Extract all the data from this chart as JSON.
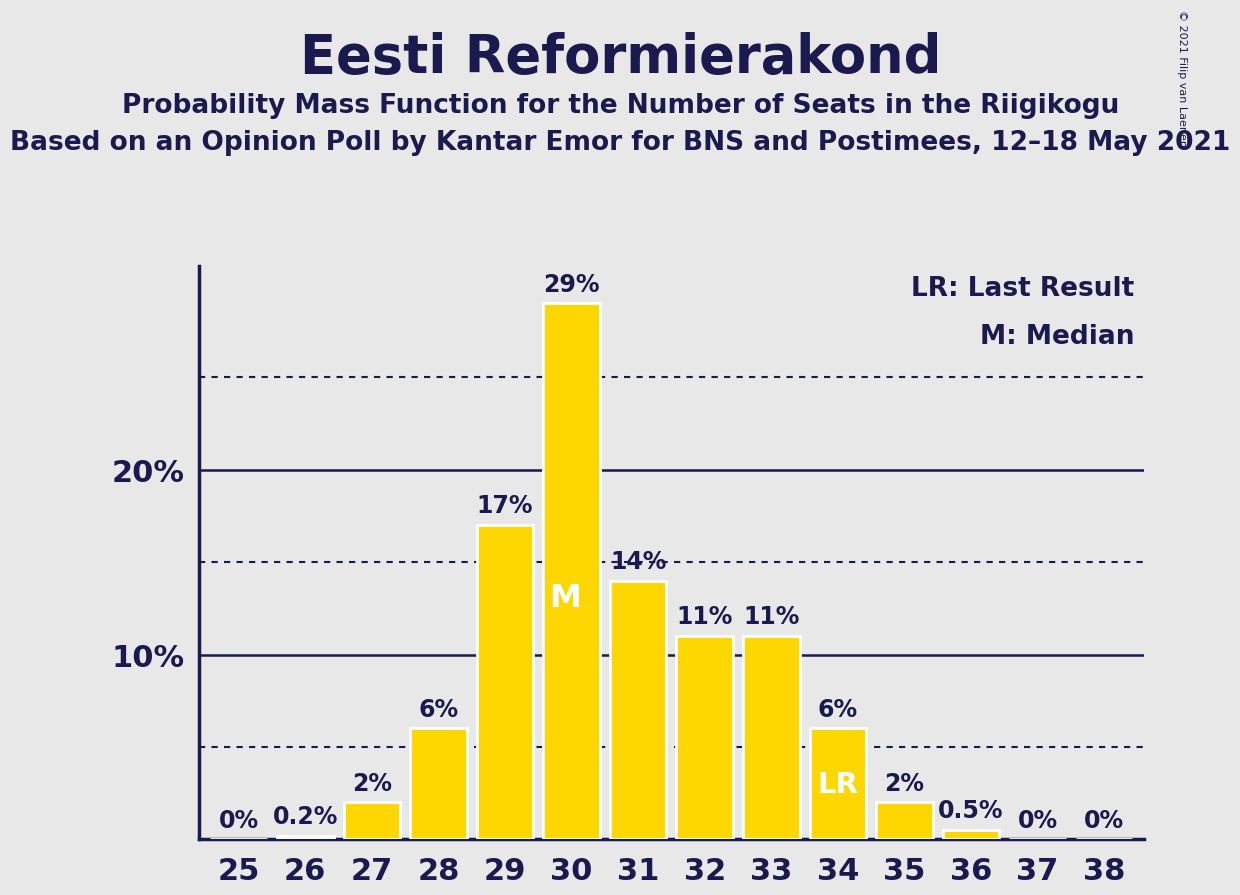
{
  "title": "Eesti Reformierakond",
  "subtitle1": "Probability Mass Function for the Number of Seats in the Riigikogu",
  "subtitle2": "Based on an Opinion Poll by Kantar Emor for BNS and Postimees, 12–18 May 2021",
  "copyright": "© 2021 Filip van Laenen",
  "seats": [
    25,
    26,
    27,
    28,
    29,
    30,
    31,
    32,
    33,
    34,
    35,
    36,
    37,
    38
  ],
  "values": [
    0.0,
    0.2,
    2.0,
    6.0,
    17.0,
    29.0,
    14.0,
    11.0,
    11.0,
    6.0,
    2.0,
    0.5,
    0.0,
    0.0
  ],
  "bar_color": "#FFD700",
  "bar_edge_color": "#FFFFFF",
  "background_color": "#E8E8E8",
  "text_color": "#1A1A4E",
  "label_color_dark": "#1A1A4E",
  "label_color_white": "#FFFFFF",
  "median_seat": 30,
  "lr_seat": 34,
  "ylim": [
    0,
    31
  ],
  "yticks": [
    10,
    20
  ],
  "dotted_lines": [
    5,
    15,
    25
  ],
  "legend_lr": "LR: Last Result",
  "legend_m": "M: Median",
  "title_fontsize": 38,
  "subtitle1_fontsize": 19,
  "subtitle2_fontsize": 19,
  "ylabel_fontsize": 22,
  "xlabel_fontsize": 22,
  "bar_label_fontsize": 17,
  "legend_fontsize": 19
}
